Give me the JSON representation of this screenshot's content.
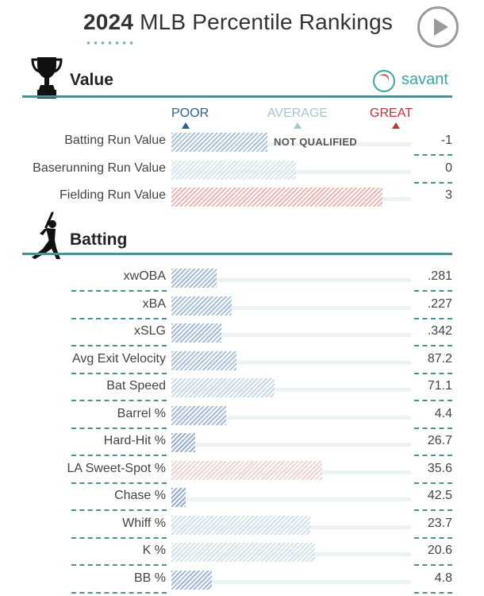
{
  "header": {
    "year": "2024",
    "title_rest": "MLB Percentile Rankings"
  },
  "play_button": {
    "icon": "play-icon"
  },
  "value_section": {
    "title": "Value",
    "brand": "savant",
    "icon": "trophy-icon",
    "scale": {
      "poor": "POOR",
      "average": "AVERAGE",
      "great": "GREAT",
      "poor_color": "#315d8f",
      "average_color": "#a9c4d1",
      "great_color": "#c2313a"
    },
    "rows": [
      {
        "label": "Batting Run Value",
        "value": "-1",
        "percentile": 40,
        "qualified": false,
        "status": "NOT QUALIFIED",
        "color": "#aac3d9"
      },
      {
        "label": "Baserunning Run Value",
        "value": "0",
        "percentile": 52,
        "qualified": false,
        "color": "#d6e6ec"
      },
      {
        "label": "Fielding Run Value",
        "value": "3",
        "percentile": 88,
        "qualified": false,
        "color": "#efb6b2"
      }
    ]
  },
  "batting_section": {
    "title": "Batting",
    "icon": "batter-icon",
    "rows": [
      {
        "label": "xwOBA",
        "value": ".281",
        "percentile": 19,
        "qualified": false,
        "color": "#a6bcd8"
      },
      {
        "label": "xBA",
        "value": ".227",
        "percentile": 25,
        "qualified": false,
        "color": "#a9bfd8"
      },
      {
        "label": "xSLG",
        "value": ".342",
        "percentile": 21,
        "qualified": false,
        "color": "#a6bcd8"
      },
      {
        "label": "Avg Exit Velocity",
        "value": "87.2",
        "percentile": 27,
        "qualified": false,
        "color": "#aac2da"
      },
      {
        "label": "Bat Speed",
        "value": "71.1",
        "percentile": 43,
        "qualified": false,
        "color": "#c8d8e6"
      },
      {
        "label": "Barrel %",
        "value": "4.4",
        "percentile": 23,
        "qualified": false,
        "color": "#a6bcd8"
      },
      {
        "label": "Hard-Hit %",
        "value": "26.7",
        "percentile": 10,
        "qualified": false,
        "color": "#97b0d0"
      },
      {
        "label": "LA Sweet-Spot %",
        "value": "35.6",
        "percentile": 63,
        "qualified": false,
        "color": "#ecd4d2"
      },
      {
        "label": "Chase %",
        "value": "42.5",
        "percentile": 6,
        "qualified": false,
        "color": "#93acce"
      },
      {
        "label": "Whiff %",
        "value": "23.7",
        "percentile": 58,
        "qualified": false,
        "color": "#d2e2ea"
      },
      {
        "label": "K %",
        "value": "20.6",
        "percentile": 60,
        "qualified": false,
        "color": "#d4e3ea"
      },
      {
        "label": "BB %",
        "value": "4.8",
        "percentile": 17,
        "qualified": false,
        "color": "#a0b8d6"
      }
    ]
  }
}
